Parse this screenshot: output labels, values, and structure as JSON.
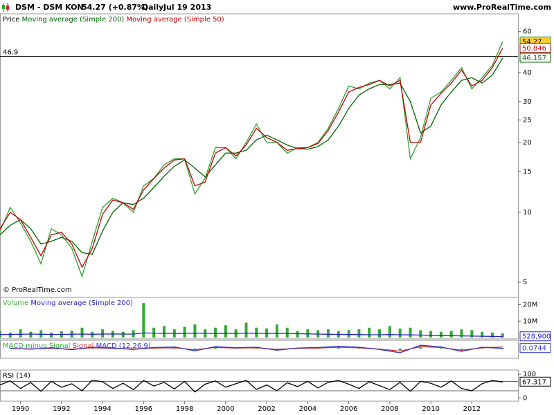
{
  "header": {
    "symbol": "DSM - DSM KON",
    "quote": "54.27 (+0.87%)",
    "period": "Daily",
    "date": "Jul 19 2013",
    "site": "www.ProRealTime.com",
    "copyright": "© ProRealTime.com"
  },
  "chart_data": [
    {
      "type": "line",
      "log_scale": true,
      "xlim": [
        1989.0,
        2014.25
      ],
      "ylim": [
        4.36,
        70.6
      ],
      "yticks": [
        5,
        10,
        15,
        20,
        25,
        30,
        40,
        60
      ],
      "xticks": [
        1990,
        1992,
        1994,
        1996,
        1998,
        2000,
        2002,
        2004,
        2006,
        2008,
        2010,
        2012
      ],
      "hline": 46.9,
      "x": [
        1989.0,
        1989.5,
        1990.0,
        1990.5,
        1991.0,
        1991.5,
        1992.0,
        1992.5,
        1993.0,
        1993.5,
        1994.0,
        1994.5,
        1995.0,
        1995.5,
        1996.0,
        1996.5,
        1997.0,
        1997.5,
        1998.0,
        1998.5,
        1999.0,
        1999.5,
        2000.0,
        2000.5,
        2001.0,
        2001.5,
        2002.0,
        2002.5,
        2003.0,
        2003.5,
        2004.0,
        2004.5,
        2005.0,
        2005.5,
        2006.0,
        2006.5,
        2007.0,
        2007.5,
        2008.0,
        2008.5,
        2009.0,
        2009.5,
        2010.0,
        2010.5,
        2011.0,
        2011.5,
        2012.0,
        2012.5,
        2013.0,
        2013.5
      ],
      "series": [
        {
          "name": "Price",
          "color": "#2f9e2f",
          "box_color": "#ffcc33",
          "last_label": "54.27",
          "values": [
            8.3,
            10.5,
            9,
            7.5,
            6,
            8.5,
            8,
            7,
            5.3,
            7.5,
            10.5,
            11.5,
            11,
            10,
            13,
            14,
            16,
            17,
            17,
            12,
            14,
            19,
            19,
            17,
            20,
            24,
            20,
            20,
            18,
            19,
            19,
            20,
            23,
            28,
            35,
            34,
            36,
            37,
            34,
            38,
            17,
            21,
            31,
            33,
            37,
            42,
            34,
            38,
            43,
            54.27
          ]
        },
        {
          "name": "Moving average (Simple 200)",
          "color": "#006400",
          "last_label": "46.157",
          "values": [
            8,
            8.8,
            9.3,
            8.5,
            7.3,
            7.5,
            7.8,
            7.5,
            6.7,
            6.6,
            8.3,
            10,
            11,
            10.8,
            11.5,
            12.8,
            14.3,
            15.8,
            16.8,
            15.5,
            14.2,
            16,
            18,
            18,
            18.5,
            20.5,
            21.5,
            20.5,
            19.5,
            18.8,
            18.7,
            19.2,
            20.5,
            23.5,
            28,
            32,
            34,
            35.5,
            35.5,
            36,
            30,
            22,
            23.5,
            29,
            33,
            37,
            38,
            36,
            39,
            46.157
          ]
        },
        {
          "name": "Moving average (Simple 50)",
          "color": "#c00000",
          "last_label": "50.846",
          "values": [
            8.5,
            10,
            9.3,
            7.8,
            6.5,
            8,
            8.2,
            7.3,
            5.8,
            7,
            9.8,
            11.3,
            11,
            10.3,
            12.5,
            14,
            15.5,
            16.8,
            17,
            13,
            13.5,
            18,
            19,
            17.5,
            19.5,
            23,
            21,
            20,
            18.5,
            18.8,
            19,
            19.8,
            22.5,
            27,
            33,
            34.5,
            35.5,
            37,
            35,
            37,
            20,
            20,
            29,
            32.5,
            36,
            41,
            35,
            37,
            42,
            50.846
          ]
        }
      ]
    },
    {
      "type": "bar",
      "xlim": [
        1989.0,
        2014.25
      ],
      "ylim": [
        0,
        23600000
      ],
      "yticks": [
        {
          "value": 20000000,
          "label": "20M"
        },
        {
          "value": 10000000,
          "label": "10M"
        }
      ],
      "x": [
        1989.0,
        1989.5,
        1990.0,
        1990.5,
        1991.0,
        1991.5,
        1992.0,
        1992.5,
        1993.0,
        1993.5,
        1994.0,
        1994.5,
        1995.0,
        1995.5,
        1996.0,
        1996.5,
        1997.0,
        1997.5,
        1998.0,
        1998.5,
        1999.0,
        1999.5,
        2000.0,
        2000.5,
        2001.0,
        2001.5,
        2002.0,
        2002.5,
        2003.0,
        2003.5,
        2004.0,
        2004.5,
        2005.0,
        2005.5,
        2006.0,
        2006.5,
        2007.0,
        2007.5,
        2008.0,
        2008.5,
        2009.0,
        2009.5,
        2010.0,
        2010.5,
        2011.0,
        2011.5,
        2012.0,
        2012.5,
        2013.0,
        2013.5
      ],
      "series": [
        {
          "name": "Volume",
          "color": "#33aa33",
          "values": [
            4000000,
            3000000,
            5000000,
            3500000,
            4500000,
            3000000,
            3800000,
            4200000,
            6000000,
            3500000,
            5000000,
            4000000,
            3500000,
            4500000,
            21000000,
            6000000,
            7000000,
            5000000,
            6500000,
            8000000,
            5000000,
            6000000,
            7500000,
            5000000,
            9000000,
            6000000,
            5500000,
            8000000,
            6000000,
            4000000,
            5000000,
            4500000,
            5000000,
            4000000,
            4500000,
            5000000,
            6000000,
            5000000,
            7000000,
            5500000,
            6000000,
            4500000,
            4000000,
            3500000,
            4000000,
            5000000,
            4500000,
            3500000,
            3000000,
            2500000
          ]
        },
        {
          "name": "Moving average (Simple 200)",
          "type": "line",
          "color": "#2222cc",
          "last_label": "528,900",
          "values": [
            1800000,
            1900000,
            2000000,
            2100000,
            2000000,
            1900000,
            1900000,
            2000000,
            2100000,
            2000000,
            2100000,
            2200000,
            2100000,
            2100000,
            2800000,
            2700000,
            2600000,
            2500000,
            2600000,
            2700000,
            2600000,
            2500000,
            2600000,
            2500000,
            2700000,
            2600000,
            2500000,
            2600000,
            2500000,
            2300000,
            2200000,
            2100000,
            2000000,
            1900000,
            1800000,
            1800000,
            1700000,
            1700000,
            1800000,
            1700000,
            1600000,
            1500000,
            1300000,
            1200000,
            1100000,
            1000000,
            900000,
            800000,
            700000,
            528900
          ]
        }
      ]
    },
    {
      "type": "line",
      "xlim": [
        1989.0,
        2014.25
      ],
      "ylim": [
        -3,
        2.5
      ],
      "x": [
        1989.5,
        1990.5,
        1991.5,
        1992.5,
        1993.5,
        1994.5,
        1995.5,
        1996.5,
        1997.5,
        1998.5,
        1999.5,
        2000.5,
        2001.5,
        2002.5,
        2003.5,
        2004.5,
        2005.5,
        2006.5,
        2007.5,
        2008.5,
        2009.5,
        2010.5,
        2011.5,
        2012.5,
        2013.5
      ],
      "series": [
        {
          "name": "MACD minus Signal",
          "type": "bar",
          "color": "#33aa33",
          "values": [
            0.1,
            -0.1,
            0.2,
            -0.2,
            0.2,
            0.1,
            -0.2,
            0.2,
            0.3,
            -0.4,
            0.3,
            0.1,
            0.2,
            -0.3,
            0.1,
            0.2,
            0.3,
            0.2,
            -0.1,
            -0.6,
            0.5,
            0.2,
            -0.4,
            0.2,
            0.3
          ]
        },
        {
          "name": "Signal",
          "color": "#cc3333",
          "values": [
            0,
            -0.1,
            0.1,
            -0.2,
            0.3,
            0.1,
            -0.1,
            0.2,
            0.3,
            -0.4,
            0.4,
            0.2,
            0.3,
            -0.3,
            0.1,
            0.2,
            0.5,
            0.3,
            -0.2,
            -0.9,
            0.7,
            0.4,
            -0.6,
            0.3,
            0.6
          ]
        },
        {
          "name": "MACD (12,26,9)",
          "color": "#3333cc",
          "last_label": "0.0744",
          "values": [
            0.1,
            -0.2,
            0.3,
            -0.4,
            0.5,
            0.2,
            -0.3,
            0.4,
            0.6,
            -0.8,
            0.7,
            0.3,
            0.5,
            -0.6,
            0.2,
            0.4,
            0.8,
            0.5,
            -0.3,
            -1.5,
            1.2,
            0.6,
            -1.0,
            0.5,
            0.0744
          ]
        }
      ]
    },
    {
      "type": "line",
      "xlim": [
        1989.0,
        2014.25
      ],
      "ylim": [
        -8,
        112
      ],
      "yticks": [
        100,
        0
      ],
      "levels": [
        70,
        30
      ],
      "x": [
        1989.0,
        1989.5,
        1990.0,
        1990.5,
        1991.0,
        1991.5,
        1992.0,
        1992.5,
        1993.0,
        1993.5,
        1994.0,
        1994.5,
        1995.0,
        1995.5,
        1996.0,
        1996.5,
        1997.0,
        1997.5,
        1998.0,
        1998.5,
        1999.0,
        1999.5,
        2000.0,
        2000.5,
        2001.0,
        2001.5,
        2002.0,
        2002.5,
        2003.0,
        2003.5,
        2004.0,
        2004.5,
        2005.0,
        2005.5,
        2006.0,
        2006.5,
        2007.0,
        2007.5,
        2008.0,
        2008.5,
        2009.0,
        2009.5,
        2010.0,
        2010.5,
        2011.0,
        2011.5,
        2012.0,
        2012.5,
        2013.0,
        2013.5
      ],
      "series": [
        {
          "name": "RSI (14)",
          "color": "#000000",
          "last_label": "67.317",
          "values": [
            55,
            72,
            40,
            65,
            28,
            70,
            45,
            60,
            30,
            75,
            68,
            40,
            62,
            35,
            74,
            50,
            66,
            38,
            70,
            25,
            58,
            72,
            45,
            60,
            74,
            36,
            55,
            30,
            64,
            48,
            70,
            42,
            66,
            74,
            58,
            40,
            68,
            52,
            35,
            66,
            28,
            70,
            62,
            45,
            72,
            40,
            30,
            60,
            74,
            67.317
          ]
        }
      ]
    }
  ]
}
